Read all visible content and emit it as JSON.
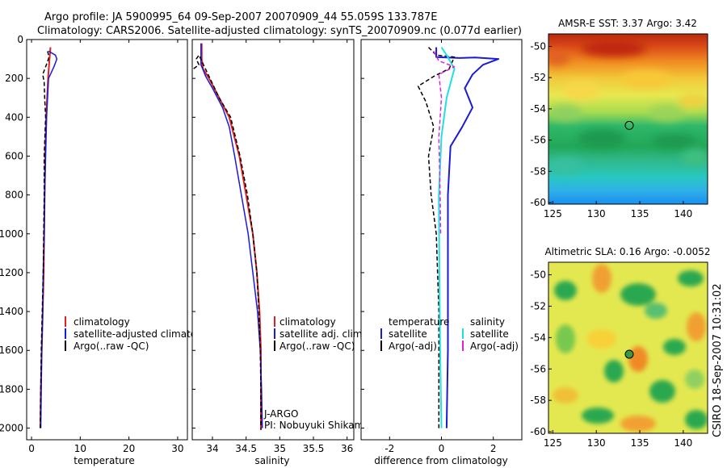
{
  "header": {
    "line1": "Argo profile: JA 5900995_64 09-Sep-2007 20070909_44 55.059S 133.787E",
    "line2": "Climatology: CARS2006. Satellite-adjusted climatology: synTS_20070909.nc (0.077d earlier)"
  },
  "side_caption": "CSIRO 18-Sep-2007 10:31:02",
  "colors": {
    "climatology": "#e02020",
    "satellite": "#1a1ad8",
    "argo": "#000000",
    "salinity_satellite": "#20e0e0",
    "salinity_argo": "#e020e0"
  },
  "chart_data": [
    {
      "id": "temperature",
      "type": "line",
      "xlabel": "temperature",
      "ylabel": "",
      "xlim": [
        -1,
        32
      ],
      "ylim": [
        2060,
        0
      ],
      "xticks": [
        0,
        10,
        20,
        30
      ],
      "yticks": [
        0,
        200,
        400,
        600,
        800,
        1000,
        1200,
        1400,
        1600,
        1800,
        2000
      ],
      "legend": {
        "placement": "lower-right",
        "entries": [
          "climatology",
          "satellite-adjusted climatology",
          "Argo(..raw -QC)"
        ]
      },
      "series": [
        {
          "name": "climatology",
          "color": "#e02020",
          "style": "solid",
          "width": 2,
          "points": [
            [
              3.9,
              40
            ],
            [
              3.7,
              100
            ],
            [
              3.4,
              200
            ],
            [
              3.0,
              400
            ],
            [
              2.8,
              600
            ],
            [
              2.7,
              800
            ],
            [
              2.6,
              1000
            ],
            [
              2.5,
              1200
            ],
            [
              2.3,
              1400
            ],
            [
              2.1,
              1600
            ],
            [
              1.9,
              1800
            ],
            [
              1.8,
              2000
            ]
          ]
        },
        {
          "name": "satellite-adjusted climatology",
          "color": "#1a1ad8",
          "style": "solid",
          "width": 1.5,
          "points": [
            [
              3.5,
              60
            ],
            [
              4.9,
              80
            ],
            [
              5.2,
              100
            ],
            [
              4.6,
              140
            ],
            [
              3.5,
              200
            ],
            [
              3.1,
              400
            ],
            [
              2.9,
              600
            ],
            [
              2.7,
              800
            ],
            [
              2.6,
              1000
            ],
            [
              2.4,
              1200
            ],
            [
              2.3,
              1400
            ],
            [
              2.1,
              1600
            ],
            [
              2.0,
              1800
            ],
            [
              1.9,
              2000
            ]
          ]
        },
        {
          "name": "Argo(..raw -QC)",
          "color": "#000000",
          "style": "dashed",
          "width": 1.5,
          "points": [
            [
              3.3,
              60
            ],
            [
              3.6,
              90
            ],
            [
              3.2,
              120
            ],
            [
              2.3,
              180
            ],
            [
              2.6,
              220
            ],
            [
              2.7,
              300
            ],
            [
              2.9,
              400
            ],
            [
              2.6,
              600
            ],
            [
              2.6,
              800
            ],
            [
              2.5,
              1000
            ],
            [
              2.4,
              1200
            ],
            [
              2.2,
              1400
            ],
            [
              2.0,
              1600
            ],
            [
              1.9,
              1800
            ],
            [
              1.8,
              2010
            ]
          ]
        }
      ]
    },
    {
      "id": "salinity",
      "type": "line",
      "xlabel": "salinity",
      "ylabel": "",
      "xlim": [
        33.7,
        36.1
      ],
      "ylim": [
        2060,
        0
      ],
      "xticks": [
        34,
        34.5,
        35,
        35.5,
        36
      ],
      "legend": {
        "placement": "lower-right",
        "entries": [
          "climatology",
          "satellite adj. clim.",
          "Argo(..raw -QC)"
        ]
      },
      "annotation": [
        "J-ARGO",
        "PI: Nobuyuki Shikama"
      ],
      "series": [
        {
          "name": "climatology",
          "color": "#e02020",
          "style": "solid",
          "width": 2,
          "points": [
            [
              33.84,
              20
            ],
            [
              33.84,
              100
            ],
            [
              33.86,
              150
            ],
            [
              33.95,
              200
            ],
            [
              34.1,
              300
            ],
            [
              34.25,
              400
            ],
            [
              34.4,
              600
            ],
            [
              34.5,
              800
            ],
            [
              34.6,
              1000
            ],
            [
              34.66,
              1200
            ],
            [
              34.7,
              1400
            ],
            [
              34.72,
              1600
            ],
            [
              34.72,
              1800
            ],
            [
              34.72,
              2000
            ]
          ]
        },
        {
          "name": "satellite adj. clim.",
          "color": "#1a1ad8",
          "style": "solid",
          "width": 1.5,
          "points": [
            [
              33.83,
              20
            ],
            [
              33.83,
              130
            ],
            [
              33.9,
              190
            ],
            [
              34.0,
              250
            ],
            [
              34.15,
              350
            ],
            [
              34.25,
              450
            ],
            [
              34.33,
              600
            ],
            [
              34.43,
              800
            ],
            [
              34.53,
              1000
            ],
            [
              34.6,
              1200
            ],
            [
              34.67,
              1400
            ],
            [
              34.71,
              1600
            ],
            [
              34.73,
              1800
            ],
            [
              34.74,
              2000
            ]
          ]
        },
        {
          "name": "Argo(..raw -QC)",
          "color": "#000000",
          "style": "dashed",
          "width": 1.5,
          "points": [
            [
              33.72,
              150
            ],
            [
              33.8,
              130
            ],
            [
              33.76,
              100
            ],
            [
              33.8,
              80
            ],
            [
              33.84,
              110
            ],
            [
              33.95,
              190
            ],
            [
              34.1,
              300
            ],
            [
              34.27,
              400
            ],
            [
              34.41,
              600
            ],
            [
              34.52,
              800
            ],
            [
              34.6,
              1000
            ],
            [
              34.66,
              1200
            ],
            [
              34.69,
              1400
            ],
            [
              34.71,
              1600
            ],
            [
              34.72,
              1800
            ],
            [
              34.72,
              2010
            ]
          ]
        }
      ]
    },
    {
      "id": "difference",
      "type": "line",
      "xlabel": "difference from climatology",
      "ylabel": "",
      "xlim": [
        -3.1,
        3.1
      ],
      "ylim": [
        2060,
        0
      ],
      "xticks": [
        -2,
        0,
        2
      ],
      "legend": {
        "placement": "lower-right",
        "columns": [
          {
            "header": "temperature",
            "entries": [
              "satellite",
              "Argo(-adj)"
            ]
          },
          {
            "header": "salinity",
            "entries": [
              "satellite",
              "Argo(-adj)"
            ]
          }
        ]
      },
      "series": [
        {
          "name": "satellite",
          "group": "temperature",
          "color": "#1a1ad8",
          "style": "solid",
          "width": 2,
          "points": [
            [
              -0.2,
              40
            ],
            [
              -0.2,
              90
            ],
            [
              0.7,
              95
            ],
            [
              1.3,
              92
            ],
            [
              2.2,
              100
            ],
            [
              1.6,
              130
            ],
            [
              1.2,
              180
            ],
            [
              0.9,
              250
            ],
            [
              1.2,
              350
            ],
            [
              0.8,
              450
            ],
            [
              0.35,
              550
            ],
            [
              0.25,
              800
            ],
            [
              0.25,
              1200
            ],
            [
              0.25,
              1600
            ],
            [
              0.2,
              2000
            ]
          ]
        },
        {
          "name": "Argo(-adj)",
          "group": "temperature",
          "color": "#000000",
          "style": "dashed",
          "width": 1.5,
          "points": [
            [
              -0.5,
              40
            ],
            [
              -0.2,
              80
            ],
            [
              0.5,
              90
            ],
            [
              0.3,
              150
            ],
            [
              -0.3,
              190
            ],
            [
              -0.9,
              240
            ],
            [
              -0.6,
              320
            ],
            [
              -0.3,
              450
            ],
            [
              -0.5,
              600
            ],
            [
              -0.4,
              800
            ],
            [
              -0.2,
              1000
            ],
            [
              -0.1,
              1400
            ],
            [
              -0.1,
              2000
            ]
          ]
        },
        {
          "name": "satellite",
          "group": "salinity",
          "color": "#20e0e0",
          "style": "solid",
          "width": 2,
          "points": [
            [
              0.0,
              40
            ],
            [
              0.2,
              80
            ],
            [
              0.5,
              150
            ],
            [
              0.4,
              200
            ],
            [
              0.2,
              300
            ],
            [
              0.0,
              500
            ],
            [
              -0.1,
              800
            ],
            [
              -0.08,
              1200
            ],
            [
              -0.05,
              1600
            ],
            [
              0.0,
              2000
            ]
          ]
        },
        {
          "name": "Argo(-adj)",
          "group": "salinity",
          "color": "#e020e0",
          "style": "dashed",
          "width": 1.5,
          "points": [
            [
              -0.3,
              60
            ],
            [
              -0.1,
              110
            ],
            [
              0.5,
              140
            ],
            [
              -0.1,
              180
            ],
            [
              0.0,
              300
            ],
            [
              -0.1,
              500
            ],
            [
              -0.05,
              800
            ],
            [
              -0.03,
              1000
            ]
          ]
        }
      ]
    },
    {
      "id": "sst_map",
      "type": "heatmap",
      "title": "AMSR-E SST: 3.37 Argo: 3.42",
      "xlim": [
        124.5,
        142.8
      ],
      "ylim": [
        -60.1,
        -49.2
      ],
      "xticks": [
        125,
        130,
        135,
        140
      ],
      "yticks": [
        -50,
        -52,
        -54,
        -56,
        -58,
        -60
      ],
      "marker": {
        "lon": 133.787,
        "lat": -55.059
      }
    },
    {
      "id": "sla_map",
      "type": "heatmap",
      "title": "Altimetric SLA: 0.16 Argo: -0.0052",
      "xlim": [
        124.5,
        142.8
      ],
      "ylim": [
        -60.1,
        -49.2
      ],
      "xticks": [
        125,
        130,
        135,
        140
      ],
      "yticks": [
        -50,
        -52,
        -54,
        -56,
        -58,
        -60
      ],
      "marker": {
        "lon": 133.787,
        "lat": -55.059
      }
    }
  ]
}
